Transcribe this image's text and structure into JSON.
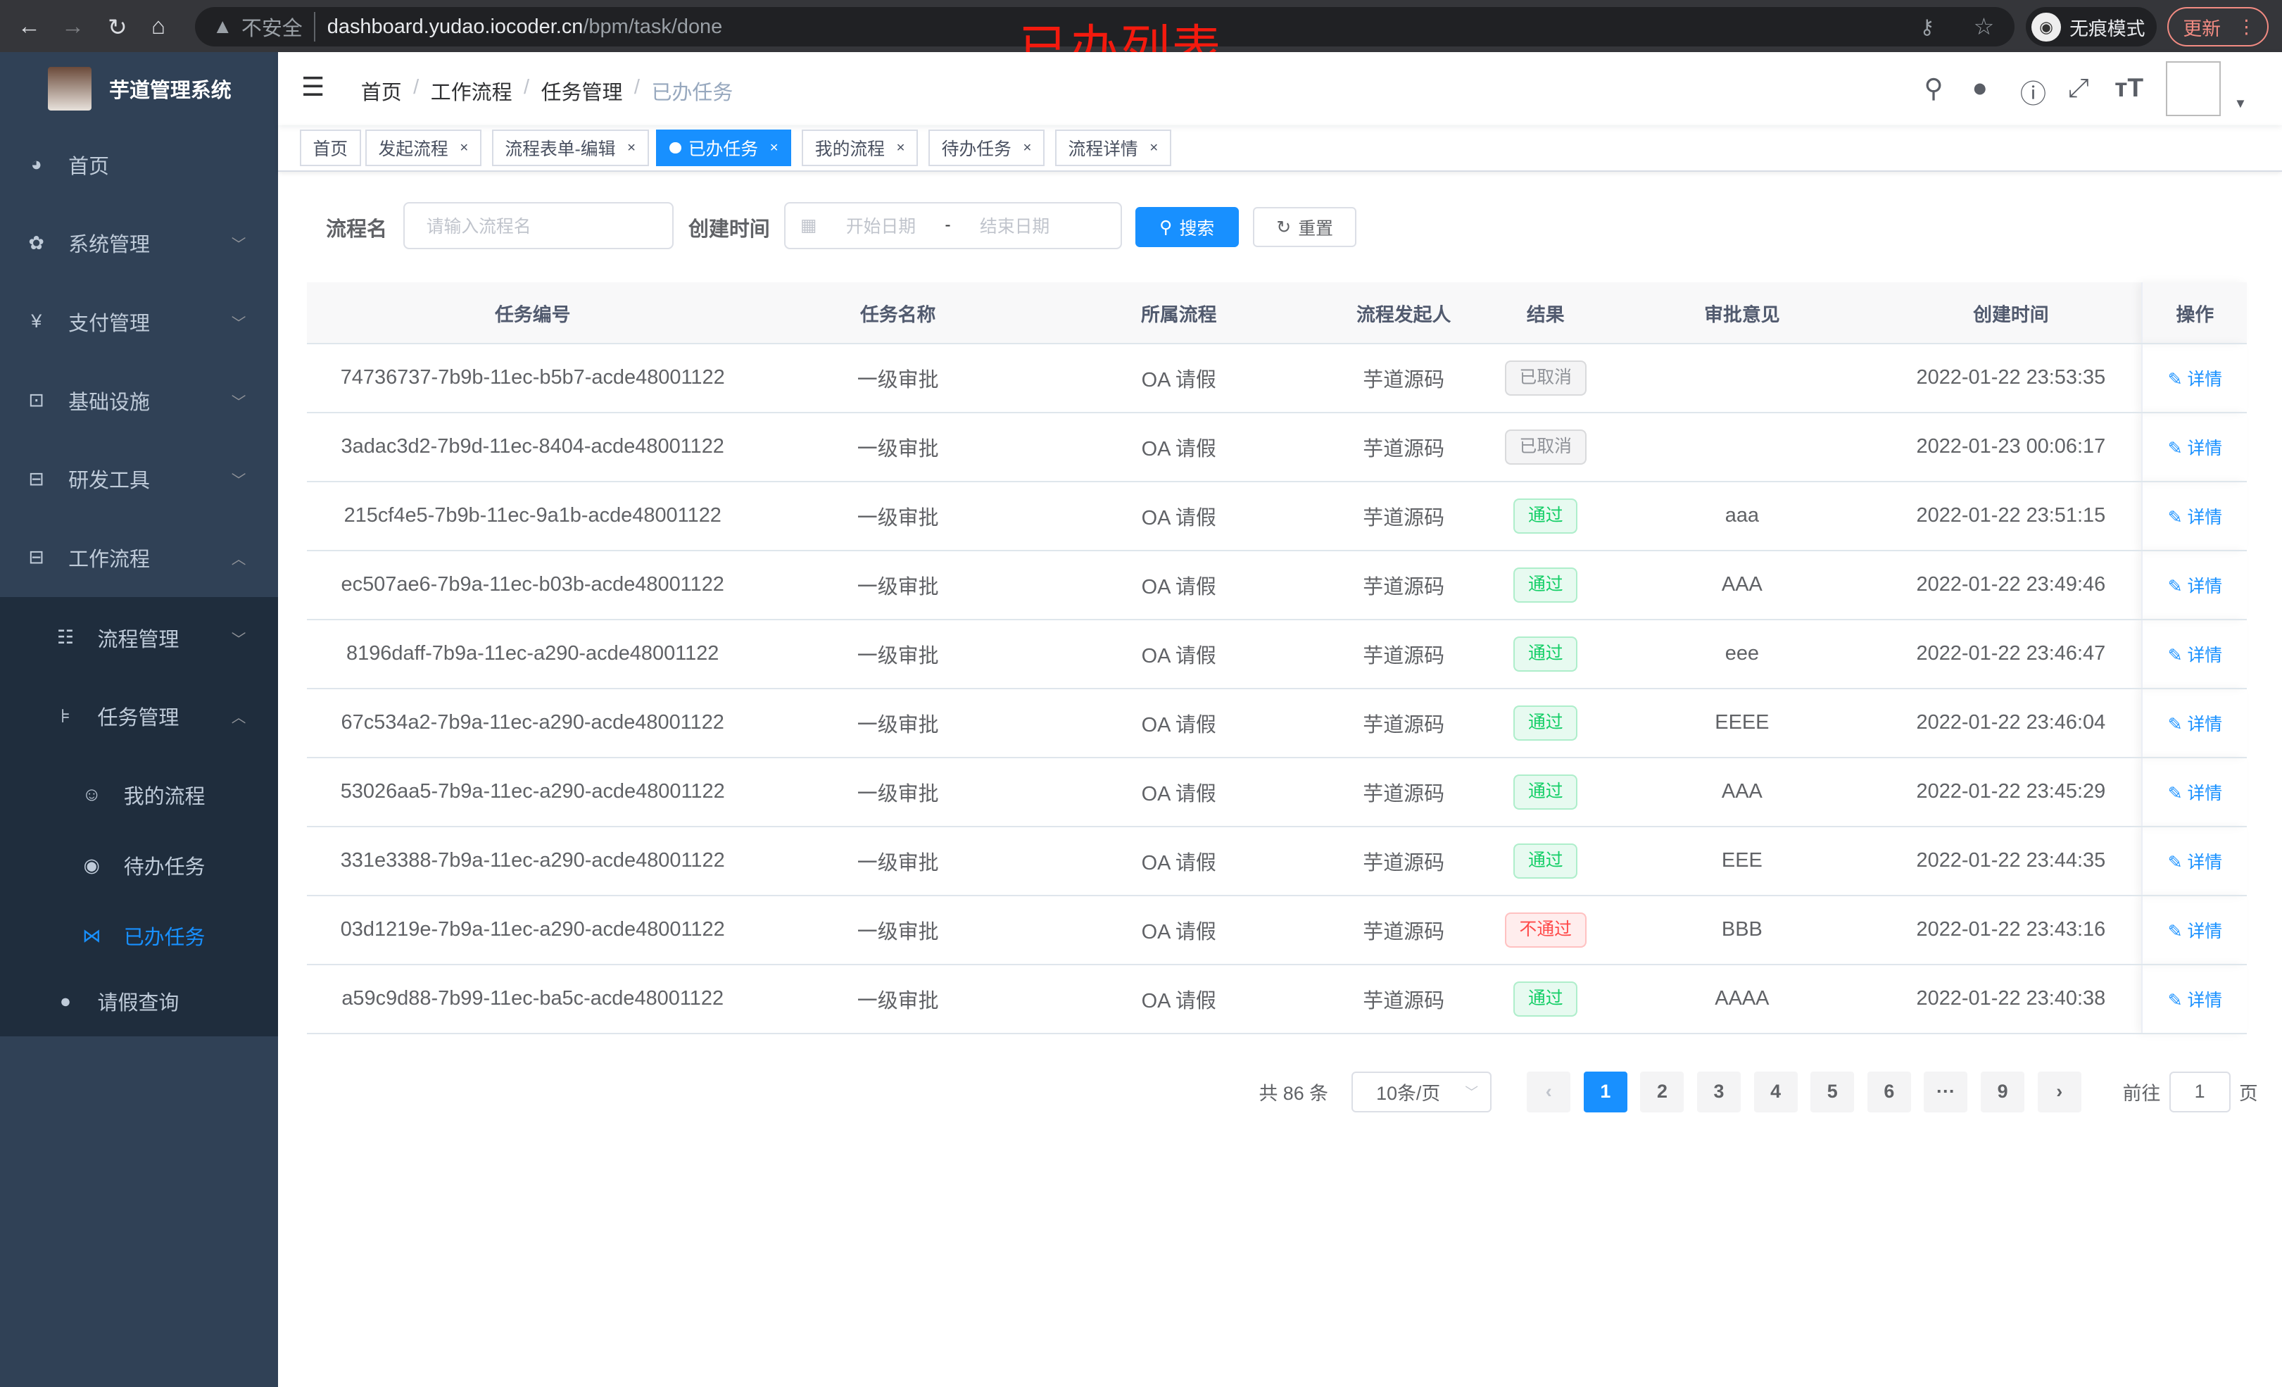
{
  "browser": {
    "security_label": "不安全",
    "url_host": "dashboard.yudao.iocoder.cn",
    "url_path": "/bpm/task/done",
    "incognito_label": "无痕模式",
    "update_label": "更新"
  },
  "annotation": "已办列表",
  "sidebar": {
    "title": "芋道管理系统",
    "items": [
      {
        "label": "首页",
        "icon": "dashboard-icon"
      },
      {
        "label": "系统管理",
        "icon": "gear-icon"
      },
      {
        "label": "支付管理",
        "icon": "yen-icon"
      },
      {
        "label": "基础设施",
        "icon": "monitor-icon"
      },
      {
        "label": "研发工具",
        "icon": "toolbox-icon"
      },
      {
        "label": "工作流程",
        "icon": "toolbox-icon"
      }
    ],
    "sub": [
      {
        "label": "流程管理",
        "icon": "list-icon"
      },
      {
        "label": "任务管理",
        "icon": "tree-icon"
      }
    ],
    "nested": [
      {
        "label": "我的流程",
        "icon": "people-icon"
      },
      {
        "label": "待办任务",
        "icon": "eye-icon"
      },
      {
        "label": "已办任务",
        "icon": "done-icon"
      }
    ],
    "last": {
      "label": "请假查询",
      "icon": "user-icon"
    },
    "active_color": "#1890ff"
  },
  "breadcrumb": [
    "首页",
    "工作流程",
    "任务管理",
    "已办任务"
  ],
  "tags": [
    {
      "label": "首页",
      "closable": false
    },
    {
      "label": "发起流程",
      "closable": true
    },
    {
      "label": "流程表单-编辑",
      "closable": true
    },
    {
      "label": "已办任务",
      "closable": true,
      "active": true
    },
    {
      "label": "我的流程",
      "closable": true
    },
    {
      "label": "待办任务",
      "closable": true
    },
    {
      "label": "流程详情",
      "closable": true
    }
  ],
  "search": {
    "name_label": "流程名",
    "name_placeholder": "请输入流程名",
    "time_label": "创建时间",
    "start_placeholder": "开始日期",
    "range_sep": "-",
    "end_placeholder": "结束日期",
    "search_label": "搜索",
    "reset_label": "重置"
  },
  "table": {
    "headers": [
      "任务编号",
      "任务名称",
      "所属流程",
      "流程发起人",
      "结果",
      "审批意见",
      "创建时间",
      "操作"
    ],
    "action_label": "详情",
    "rows": [
      [
        "74736737-7b9b-11ec-b5b7-acde48001122",
        "一级审批",
        "OA 请假",
        "芋道源码",
        "已取消",
        "",
        "2022-01-22 23:53:35"
      ],
      [
        "3adac3d2-7b9d-11ec-8404-acde48001122",
        "一级审批",
        "OA 请假",
        "芋道源码",
        "已取消",
        "",
        "2022-01-23 00:06:17"
      ],
      [
        "215cf4e5-7b9b-11ec-9a1b-acde48001122",
        "一级审批",
        "OA 请假",
        "芋道源码",
        "通过",
        "aaa",
        "2022-01-22 23:51:15"
      ],
      [
        "ec507ae6-7b9a-11ec-b03b-acde48001122",
        "一级审批",
        "OA 请假",
        "芋道源码",
        "通过",
        "AAA",
        "2022-01-22 23:49:46"
      ],
      [
        "8196daff-7b9a-11ec-a290-acde48001122",
        "一级审批",
        "OA 请假",
        "芋道源码",
        "通过",
        "eee",
        "2022-01-22 23:46:47"
      ],
      [
        "67c534a2-7b9a-11ec-a290-acde48001122",
        "一级审批",
        "OA 请假",
        "芋道源码",
        "通过",
        "EEEE",
        "2022-01-22 23:46:04"
      ],
      [
        "53026aa5-7b9a-11ec-a290-acde48001122",
        "一级审批",
        "OA 请假",
        "芋道源码",
        "通过",
        "AAA",
        "2022-01-22 23:45:29"
      ],
      [
        "331e3388-7b9a-11ec-a290-acde48001122",
        "一级审批",
        "OA 请假",
        "芋道源码",
        "通过",
        "EEE",
        "2022-01-22 23:44:35"
      ],
      [
        "03d1219e-7b9a-11ec-a290-acde48001122",
        "一级审批",
        "OA 请假",
        "芋道源码",
        "不通过",
        "BBB",
        "2022-01-22 23:43:16"
      ],
      [
        "a59c9d88-7b99-11ec-ba5c-acde48001122",
        "一级审批",
        "OA 请假",
        "芋道源码",
        "通过",
        "AAAA",
        "2022-01-22 23:40:38"
      ]
    ]
  },
  "status_colors": {
    "已取消": "#909399",
    "通过": "#13ce66",
    "不通过": "#ff4949"
  },
  "pagination": {
    "total_label": "共 86 条",
    "page_size": "10条/页",
    "pages": [
      "1",
      "2",
      "3",
      "4",
      "5",
      "6",
      "···",
      "9"
    ],
    "current": "1",
    "goto_label": "前往",
    "goto_value": "1",
    "page_suffix": "页"
  }
}
